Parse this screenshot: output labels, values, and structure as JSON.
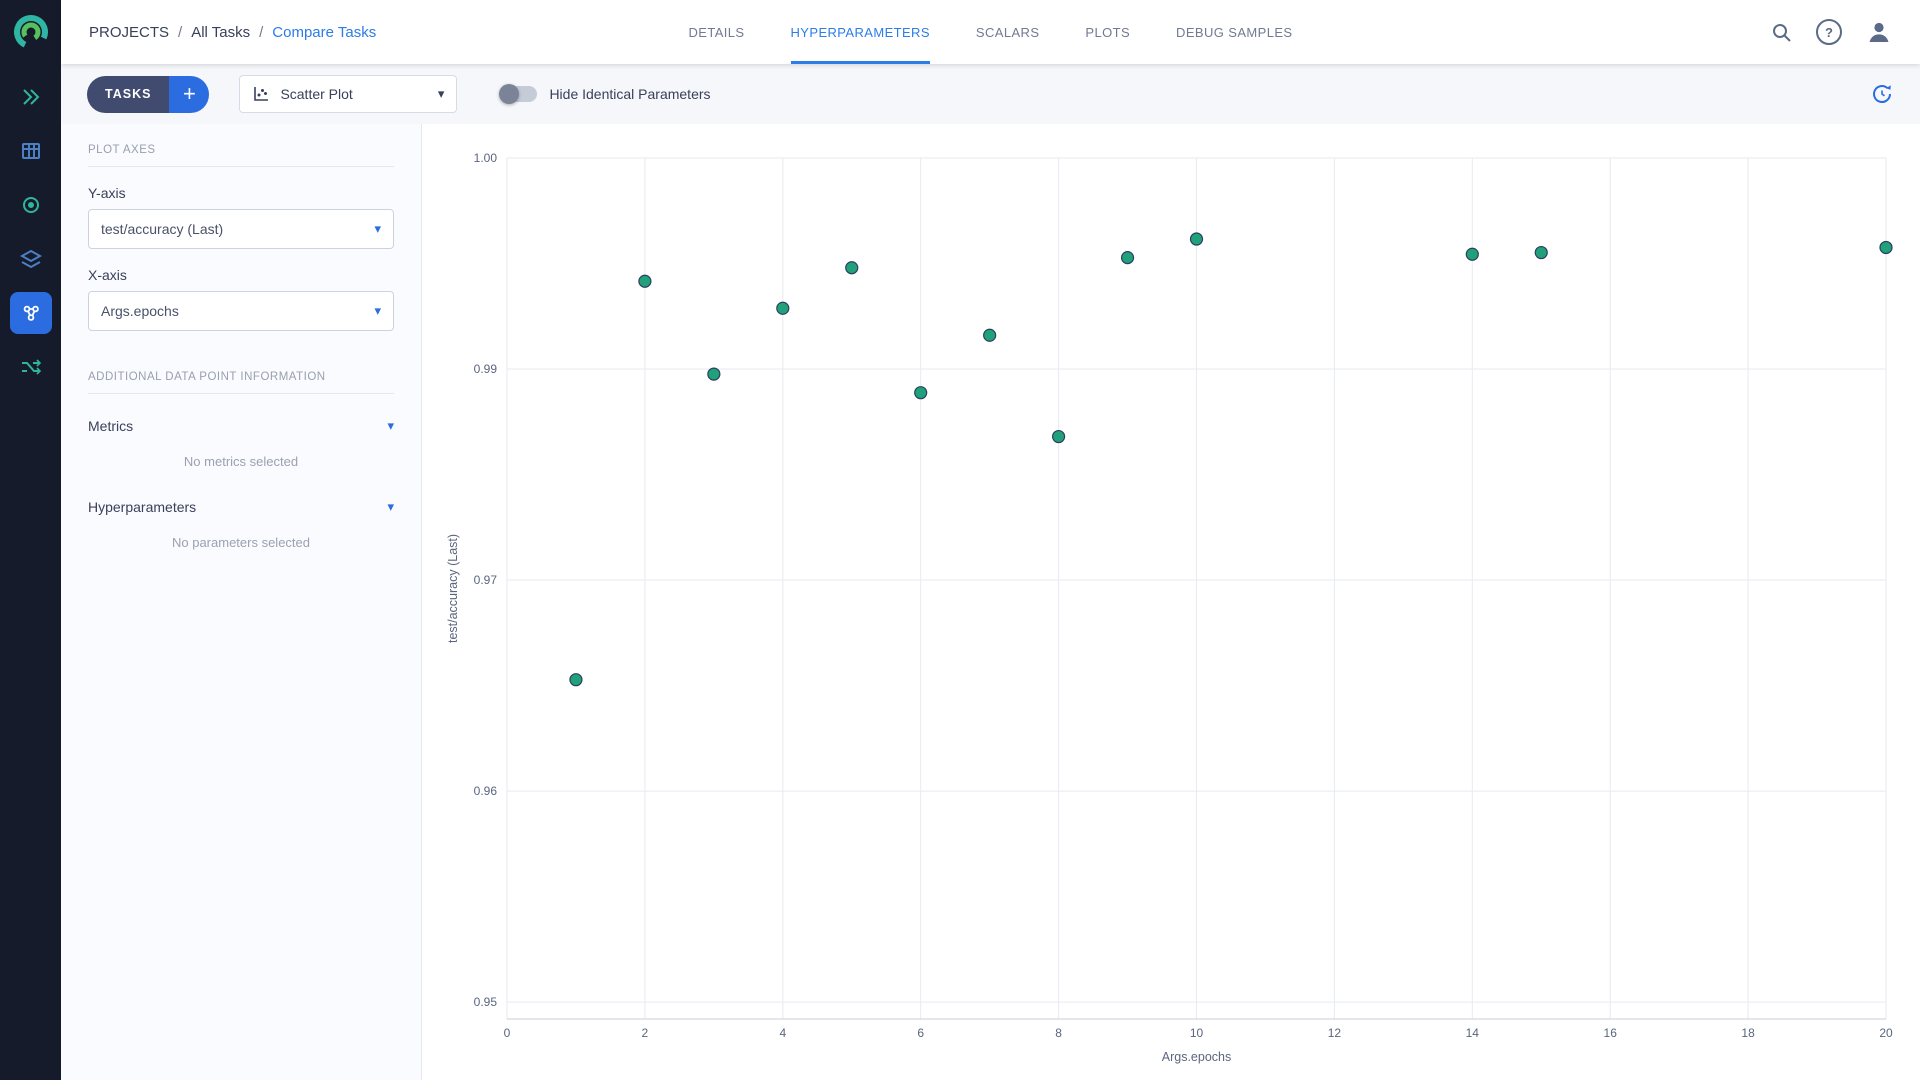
{
  "header": {
    "breadcrumb": {
      "items": [
        "PROJECTS",
        "All Tasks",
        "Compare Tasks"
      ],
      "separator": "/"
    },
    "tabs": [
      {
        "label": "DETAILS"
      },
      {
        "label": "HYPERPARAMETERS",
        "active": true
      },
      {
        "label": "SCALARS"
      },
      {
        "label": "PLOTS"
      },
      {
        "label": "DEBUG SAMPLES"
      }
    ]
  },
  "toolbar": {
    "tasks_label": "TASKS",
    "plot_type": "Scatter Plot",
    "hide_identical": "Hide Identical Parameters",
    "toggle_state": "off"
  },
  "panel": {
    "plot_axes_heading": "PLOT AXES",
    "y_axis": {
      "label": "Y-axis",
      "value": "test/accuracy (Last)"
    },
    "x_axis": {
      "label": "X-axis",
      "value": "Args.epochs"
    },
    "additional_heading": "ADDITIONAL DATA POINT INFORMATION",
    "metrics": {
      "label": "Metrics",
      "empty": "No metrics selected"
    },
    "hyperparameters": {
      "label": "Hyperparameters",
      "empty": "No parameters selected"
    }
  },
  "icons": {
    "caret_down": "▾",
    "plus": "+",
    "help": "?"
  },
  "accent": "#2b7de9",
  "chart_data": {
    "type": "scatter",
    "x": [
      1,
      2,
      3,
      4,
      5,
      6,
      7,
      8,
      9,
      10,
      14,
      15,
      20
    ],
    "y": [
      0.9691,
      0.9927,
      0.9872,
      0.9911,
      0.9935,
      0.9861,
      0.9895,
      0.9835,
      0.9941,
      0.9952,
      0.9943,
      0.9944,
      0.9947
    ],
    "xlabel": "Args.epochs",
    "ylabel": "test/accuracy (Last)",
    "xlim": [
      0,
      20
    ],
    "ylim": [
      0.949,
      1.0
    ],
    "x_ticks": {
      "values": [
        0,
        2,
        4,
        6,
        8,
        10,
        12,
        14,
        16,
        18,
        20
      ],
      "labels": [
        "0",
        "2",
        "4",
        "6",
        "8",
        "10",
        "12",
        "14",
        "16",
        "18",
        "20"
      ]
    },
    "y_ticks": {
      "values": [
        0.95,
        0.9625,
        0.975,
        0.9875,
        1.0
      ],
      "labels": [
        "0.95",
        "0.96",
        "0.97",
        "0.99",
        "1.00"
      ]
    },
    "grid": true,
    "legend": false,
    "marker": {
      "color": "#21a179",
      "edge": "#2a3f5f",
      "size": 6
    },
    "colors": {
      "grid": "#e7eaf2",
      "tick": "#5a657e",
      "axis_line": "#c8cdd9"
    }
  }
}
